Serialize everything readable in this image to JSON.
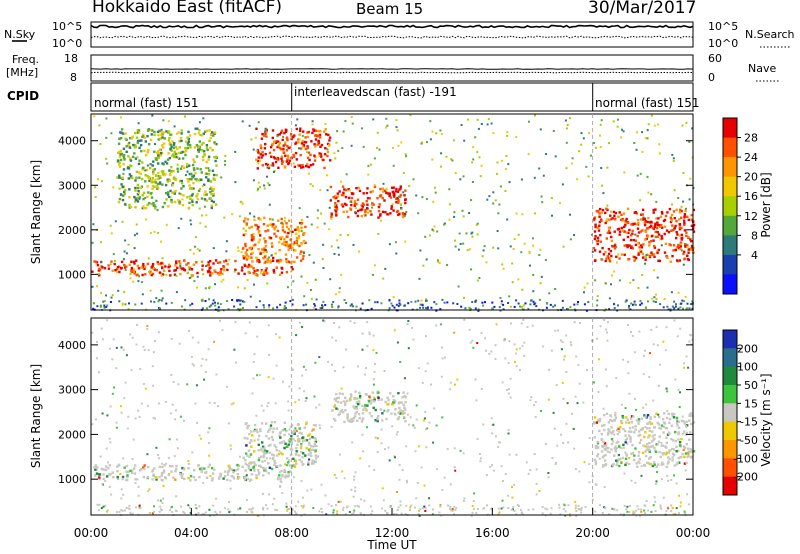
{
  "header": {
    "radar": "Hokkaido East (fitACF)",
    "beam": "Beam 15",
    "date": "30/Mar/2017"
  },
  "noise_panel": {
    "left_label": "N.Sky",
    "right_label": "N.Search",
    "ticks_left": [
      "10^5",
      "10^0"
    ],
    "ticks_right": [
      "10^5",
      "10^0"
    ]
  },
  "freq_panel": {
    "left_label_1": "Freq.",
    "left_label_2": "[MHz]",
    "right_label": "Nave",
    "left_ticks": [
      "18",
      "8"
    ],
    "right_ticks": [
      "60",
      "0"
    ]
  },
  "cpid": {
    "label": "CPID",
    "segments": [
      {
        "text": "normal (fast) 151",
        "start_hour": 0
      },
      {
        "text": "interleavedscan (fast) -191",
        "start_hour": 8
      },
      {
        "text": "normal (fast) 151",
        "start_hour": 20
      }
    ]
  },
  "power_colorbar": {
    "label": "Power [dB]",
    "ticks": [
      "28",
      "24",
      "20",
      "16",
      "12",
      "8",
      "4"
    ],
    "colors": [
      "#e60000",
      "#ff5000",
      "#ff9600",
      "#f0c800",
      "#a8d000",
      "#52a83a",
      "#2e7a7a",
      "#1c3fb0",
      "#0a10ff"
    ]
  },
  "velocity_colorbar": {
    "label": "Velocity [m s⁻¹]",
    "ticks": [
      "200",
      "100",
      "50",
      "15",
      "-15",
      "-50",
      "-100",
      "-200"
    ],
    "colors": [
      "#1c2fb0",
      "#2a6e8e",
      "#1f8a3c",
      "#3cc43c",
      "#c8c8c0",
      "#f0c800",
      "#ff9600",
      "#ff5000",
      "#e60000"
    ]
  },
  "chart_data": [
    {
      "type": "heatmap",
      "name": "power",
      "ylabel": "Slant Range [km]",
      "ylim": [
        200,
        4600
      ],
      "yticks": [
        1000,
        2000,
        3000,
        4000
      ],
      "xlim": [
        0,
        24
      ],
      "xticks": [
        "00:00",
        "04:00",
        "08:00",
        "12:00",
        "16:00",
        "20:00",
        "00:00"
      ],
      "bands": [
        {
          "t0": 0.0,
          "t1": 8.0,
          "r0": 1000,
          "r1": 1350,
          "level": "high"
        },
        {
          "t0": 6.0,
          "t1": 8.5,
          "r0": 1300,
          "r1": 2300,
          "level": "mid"
        },
        {
          "t0": 6.5,
          "t1": 9.5,
          "r0": 3400,
          "r1": 4300,
          "level": "high"
        },
        {
          "t0": 9.5,
          "t1": 12.5,
          "r0": 2300,
          "r1": 3000,
          "level": "high"
        },
        {
          "t0": 20.0,
          "t1": 24.0,
          "r0": 1300,
          "r1": 2500,
          "level": "high"
        },
        {
          "t0": 1.0,
          "t1": 5.0,
          "r0": 2500,
          "r1": 4300,
          "level": "low"
        }
      ]
    },
    {
      "type": "heatmap",
      "name": "velocity",
      "ylabel": "Slant Range [km]",
      "ylim": [
        200,
        4600
      ],
      "yticks": [
        1000,
        2000,
        3000,
        4000
      ],
      "xlim": [
        0,
        24
      ],
      "xticks": [
        "00:00",
        "04:00",
        "08:00",
        "12:00",
        "16:00",
        "20:00",
        "00:00"
      ],
      "xlabel": "Time UT",
      "bands": [
        {
          "t0": 0.0,
          "t1": 8.0,
          "r0": 1000,
          "r1": 1350,
          "level": "zero"
        },
        {
          "t0": 6.0,
          "t1": 9.0,
          "r0": 1300,
          "r1": 2300,
          "level": "zero"
        },
        {
          "t0": 9.5,
          "t1": 12.5,
          "r0": 2300,
          "r1": 3000,
          "level": "zero"
        },
        {
          "t0": 20.0,
          "t1": 24.0,
          "r0": 1300,
          "r1": 2500,
          "level": "zero"
        }
      ]
    }
  ]
}
